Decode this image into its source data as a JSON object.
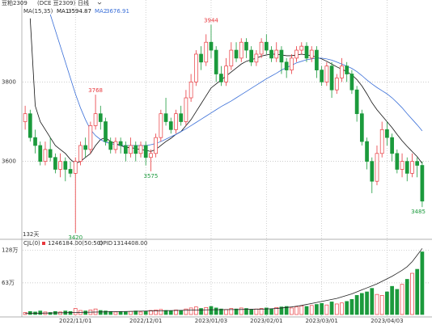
{
  "header": {
    "symbol": "豆粕2309",
    "exchange": "(DCE 豆2309)",
    "period": "日线"
  },
  "chart_data": [
    {
      "type": "candlestick",
      "indicator": "MA(15,35)",
      "days_label": "132天",
      "up_color": "#e8383d",
      "down_color": "#1b9a3c",
      "grid": true,
      "ylim": [
        3410,
        3990
      ],
      "yticks": [
        3600,
        3800
      ],
      "categories": [
        null,
        null,
        null,
        null,
        null,
        null,
        null,
        null,
        null,
        null,
        "2022/11/01",
        null,
        null,
        null,
        null,
        null,
        null,
        null,
        null,
        null,
        null,
        null,
        null,
        null,
        "2022/12/01",
        null,
        null,
        null,
        null,
        null,
        null,
        null,
        null,
        null,
        null,
        null,
        null,
        "2023/01/03",
        null,
        null,
        null,
        null,
        null,
        null,
        null,
        null,
        null,
        null,
        "2023/02/01",
        null,
        null,
        null,
        null,
        null,
        null,
        null,
        null,
        null,
        null,
        "2023/03/01",
        null,
        null,
        null,
        null,
        null,
        null,
        null,
        null,
        null,
        null,
        null,
        null,
        "2023/04/03",
        null,
        null,
        null,
        null,
        null,
        null,
        null
      ],
      "open": [
        3700,
        3720,
        3660,
        3640,
        3600,
        3630,
        3610,
        3580,
        3600,
        3580,
        3570,
        3600,
        3640,
        3630,
        3690,
        3720,
        3700,
        3650,
        3630,
        3650,
        3640,
        3620,
        3640,
        3620,
        3640,
        3610,
        3620,
        3660,
        3720,
        3700,
        3680,
        3720,
        3700,
        3760,
        3800,
        3870,
        3850,
        3900,
        3880,
        3820,
        3800,
        3840,
        3880,
        3860,
        3900,
        3880,
        3850,
        3870,
        3900,
        3880,
        3860,
        3880,
        3850,
        3830,
        3860,
        3880,
        3890,
        3860,
        3880,
        3830,
        3800,
        3840,
        3780,
        3810,
        3840,
        3820,
        3780,
        3720,
        3650,
        3600,
        3550,
        3620,
        3680,
        3660,
        3620,
        3580,
        3600,
        3570,
        3600,
        3590
      ],
      "high": [
        3740,
        3730,
        3680,
        3650,
        3650,
        3660,
        3620,
        3620,
        3610,
        3600,
        3610,
        3650,
        3660,
        3700,
        3768,
        3740,
        3710,
        3660,
        3660,
        3660,
        3650,
        3660,
        3650,
        3650,
        3650,
        3630,
        3670,
        3730,
        3760,
        3710,
        3730,
        3740,
        3780,
        3820,
        3880,
        3890,
        3920,
        3944,
        3890,
        3840,
        3860,
        3900,
        3900,
        3910,
        3910,
        3890,
        3880,
        3910,
        3920,
        3890,
        3900,
        3890,
        3860,
        3870,
        3890,
        3900,
        3900,
        3890,
        3890,
        3840,
        3850,
        3850,
        3820,
        3860,
        3850,
        3830,
        3790,
        3730,
        3660,
        3610,
        3640,
        3700,
        3700,
        3670,
        3630,
        3620,
        3610,
        3620,
        3610,
        3600
      ],
      "low": [
        3680,
        3650,
        3620,
        3590,
        3590,
        3600,
        3570,
        3560,
        3550,
        3560,
        3420,
        3590,
        3610,
        3620,
        3680,
        3680,
        3640,
        3620,
        3620,
        3620,
        3600,
        3610,
        3600,
        3610,
        3590,
        3575,
        3610,
        3650,
        3690,
        3670,
        3670,
        3690,
        3690,
        3750,
        3790,
        3830,
        3840,
        3860,
        3800,
        3790,
        3790,
        3830,
        3850,
        3850,
        3860,
        3840,
        3840,
        3860,
        3870,
        3850,
        3850,
        3820,
        3810,
        3820,
        3850,
        3870,
        3850,
        3850,
        3810,
        3790,
        3790,
        3760,
        3770,
        3800,
        3800,
        3770,
        3700,
        3640,
        3580,
        3520,
        3540,
        3610,
        3640,
        3600,
        3570,
        3560,
        3550,
        3560,
        3560,
        3485
      ],
      "close": [
        3720,
        3660,
        3640,
        3600,
        3630,
        3610,
        3580,
        3600,
        3580,
        3570,
        3600,
        3640,
        3630,
        3690,
        3720,
        3700,
        3650,
        3630,
        3650,
        3640,
        3620,
        3640,
        3620,
        3640,
        3610,
        3620,
        3660,
        3720,
        3700,
        3680,
        3720,
        3700,
        3760,
        3800,
        3870,
        3850,
        3900,
        3880,
        3820,
        3800,
        3840,
        3880,
        3860,
        3900,
        3880,
        3850,
        3870,
        3900,
        3880,
        3860,
        3880,
        3850,
        3830,
        3860,
        3880,
        3890,
        3860,
        3880,
        3830,
        3800,
        3840,
        3780,
        3810,
        3840,
        3820,
        3780,
        3720,
        3650,
        3600,
        3550,
        3620,
        3680,
        3660,
        3620,
        3580,
        3600,
        3570,
        3600,
        3590,
        3500
      ],
      "annotations": [
        3944,
        3768,
        3575,
        3420,
        3485
      ],
      "series": [
        {
          "name": "MA1",
          "color": "#111111",
          "values": [
            null,
            3960,
            3740,
            3700,
            3680,
            3660,
            3640,
            3630,
            3620,
            3605,
            3595,
            3600,
            3610,
            3620,
            3640,
            3655,
            3660,
            3650,
            3645,
            3640,
            3635,
            3635,
            3632,
            3630,
            3628,
            3625,
            3630,
            3640,
            3650,
            3658,
            3668,
            3675,
            3690,
            3705,
            3725,
            3745,
            3765,
            3785,
            3795,
            3805,
            3815,
            3825,
            3835,
            3845,
            3852,
            3856,
            3860,
            3865,
            3868,
            3870,
            3870,
            3868,
            3866,
            3866,
            3868,
            3870,
            3868,
            3866,
            3862,
            3858,
            3852,
            3845,
            3838,
            3832,
            3826,
            3818,
            3806,
            3790,
            3770,
            3748,
            3730,
            3715,
            3700,
            3685,
            3668,
            3652,
            3638,
            3625,
            3612,
            3594.87
          ]
        },
        {
          "name": "MA2",
          "color": "#3a6fd8",
          "values": [
            null,
            null,
            null,
            null,
            null,
            3970,
            3930,
            3890,
            3850,
            3810,
            3770,
            3735,
            3705,
            3680,
            3665,
            3655,
            3648,
            3645,
            3642,
            3640,
            3640,
            3640,
            3640,
            3640,
            3640,
            3642,
            3645,
            3650,
            3656,
            3662,
            3668,
            3675,
            3682,
            3690,
            3698,
            3706,
            3714,
            3722,
            3730,
            3738,
            3745,
            3752,
            3760,
            3768,
            3776,
            3784,
            3792,
            3800,
            3808,
            3815,
            3822,
            3830,
            3836,
            3842,
            3848,
            3852,
            3856,
            3858,
            3860,
            3860,
            3858,
            3855,
            3850,
            3845,
            3840,
            3834,
            3826,
            3816,
            3805,
            3795,
            3786,
            3778,
            3770,
            3760,
            3748,
            3735,
            3720,
            3706,
            3692,
            3676.91
          ]
        }
      ]
    },
    {
      "type": "bar",
      "title": "CJL(0)",
      "readout": "1246184.00(50:50)",
      "grid": true,
      "ylim": [
        0,
        1400000
      ],
      "yticks": [
        {
          "value": 630000,
          "label": "63万"
        },
        {
          "value": 1280000,
          "label": "128万"
        }
      ],
      "values": [
        40000,
        60000,
        50000,
        70000,
        50000,
        40000,
        60000,
        50000,
        70000,
        60000,
        120000,
        80000,
        70000,
        90000,
        110000,
        80000,
        70000,
        60000,
        50000,
        60000,
        50000,
        60000,
        70000,
        50000,
        60000,
        80000,
        90000,
        100000,
        80000,
        70000,
        90000,
        80000,
        110000,
        130000,
        150000,
        120000,
        140000,
        160000,
        130000,
        110000,
        100000,
        120000,
        110000,
        130000,
        120000,
        100000,
        110000,
        120000,
        130000,
        110000,
        140000,
        150000,
        160000,
        130000,
        150000,
        170000,
        160000,
        180000,
        200000,
        220000,
        190000,
        250000,
        210000,
        230000,
        260000,
        300000,
        380000,
        420000,
        450000,
        520000,
        400000,
        380000,
        450000,
        560000,
        500000,
        600000,
        700000,
        820000,
        900000,
        1246184
      ],
      "series": [
        {
          "name": "OPID",
          "readout": "1314408.00",
          "color": "#222222",
          "values": [
            20000,
            22000,
            24000,
            26000,
            28000,
            30000,
            32000,
            34000,
            36000,
            38000,
            40000,
            42000,
            44000,
            46000,
            48000,
            50000,
            52000,
            54000,
            56000,
            58000,
            60000,
            62000,
            64000,
            66000,
            68000,
            70000,
            72000,
            74000,
            76000,
            78000,
            80000,
            82000,
            84000,
            86000,
            88000,
            90000,
            92000,
            94000,
            95000,
            96000,
            97000,
            98000,
            99000,
            100000,
            102000,
            104000,
            106000,
            108000,
            110000,
            115000,
            120000,
            130000,
            140000,
            150000,
            165000,
            180000,
            200000,
            220000,
            240000,
            260000,
            280000,
            300000,
            320000,
            350000,
            380000,
            410000,
            450000,
            490000,
            530000,
            570000,
            610000,
            660000,
            710000,
            760000,
            820000,
            880000,
            950000,
            1050000,
            1180000,
            1314408
          ]
        }
      ]
    }
  ]
}
